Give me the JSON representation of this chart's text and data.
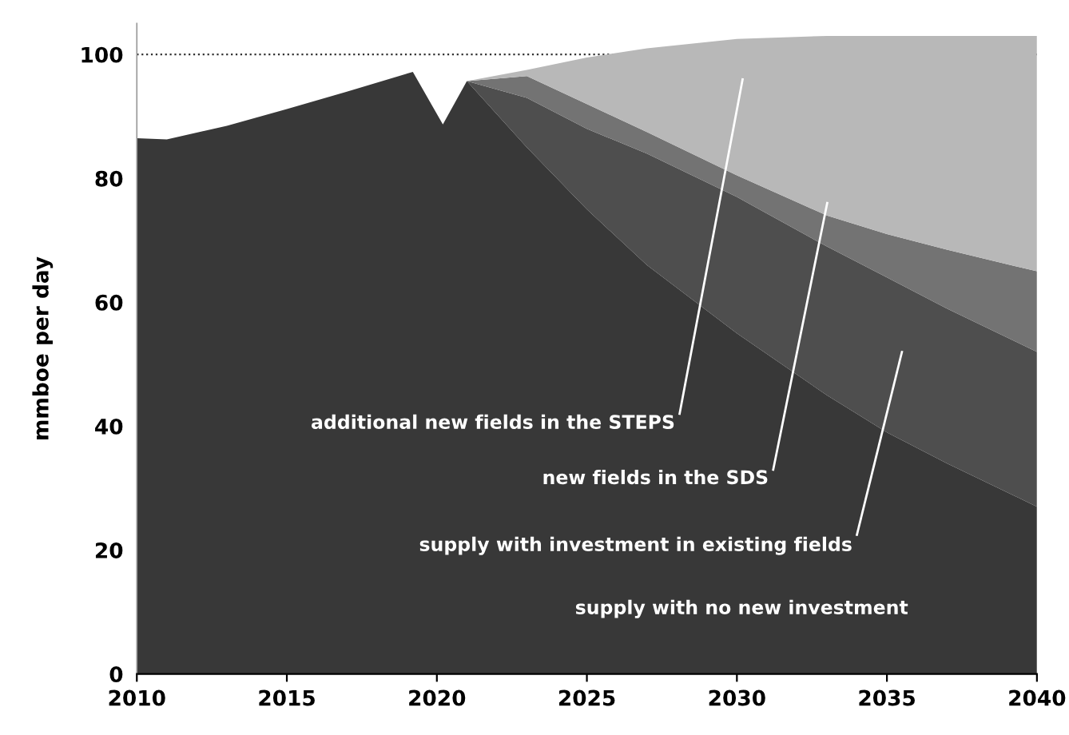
{
  "chart_data": {
    "type": "area",
    "stacked": true,
    "ylabel": "mmboe per day",
    "x": [
      2010,
      2011,
      2013,
      2015,
      2017,
      2019.2,
      2020.2,
      2021,
      2023,
      2025,
      2027,
      2030,
      2033,
      2035,
      2037,
      2040
    ],
    "series": [
      {
        "color": "#383838",
        "values": [
          86.5,
          86.3,
          88.5,
          91.2,
          94,
          97.2,
          88.7,
          95.7,
          85,
          75,
          66,
          55,
          45,
          39,
          34,
          27
        ]
      },
      {
        "color": "#4e4e4e",
        "values": [
          0,
          0,
          0,
          0,
          0,
          0,
          0,
          0,
          8,
          13,
          18,
          22,
          24,
          25,
          25,
          25
        ]
      },
      {
        "color": "#737373",
        "values": [
          0,
          0,
          0,
          0,
          0,
          0,
          0,
          0,
          3.5,
          4,
          3.5,
          3.5,
          5,
          7,
          9.5,
          13
        ]
      },
      {
        "color": "#b8b8b8",
        "values": [
          0,
          0,
          0,
          0,
          0,
          0,
          0,
          0,
          1,
          7.5,
          13.5,
          22,
          29,
          32,
          34.5,
          38
        ]
      }
    ],
    "xlim": [
      2010,
      2040
    ],
    "ylim": [
      0,
      105
    ],
    "xticks": [
      2010,
      2015,
      2020,
      2025,
      2030,
      2035,
      2040
    ],
    "yticks": [
      0,
      20,
      40,
      60,
      80,
      100
    ],
    "grid": false,
    "ref_lines": [
      {
        "axis": "y",
        "value": 100,
        "color": "#333333",
        "line_style": "dotted"
      }
    ],
    "annotations": [
      "additional new fields in the STEPS",
      "new fields in the SDS",
      "supply with investment in existing fields",
      "supply with no new investment"
    ]
  }
}
